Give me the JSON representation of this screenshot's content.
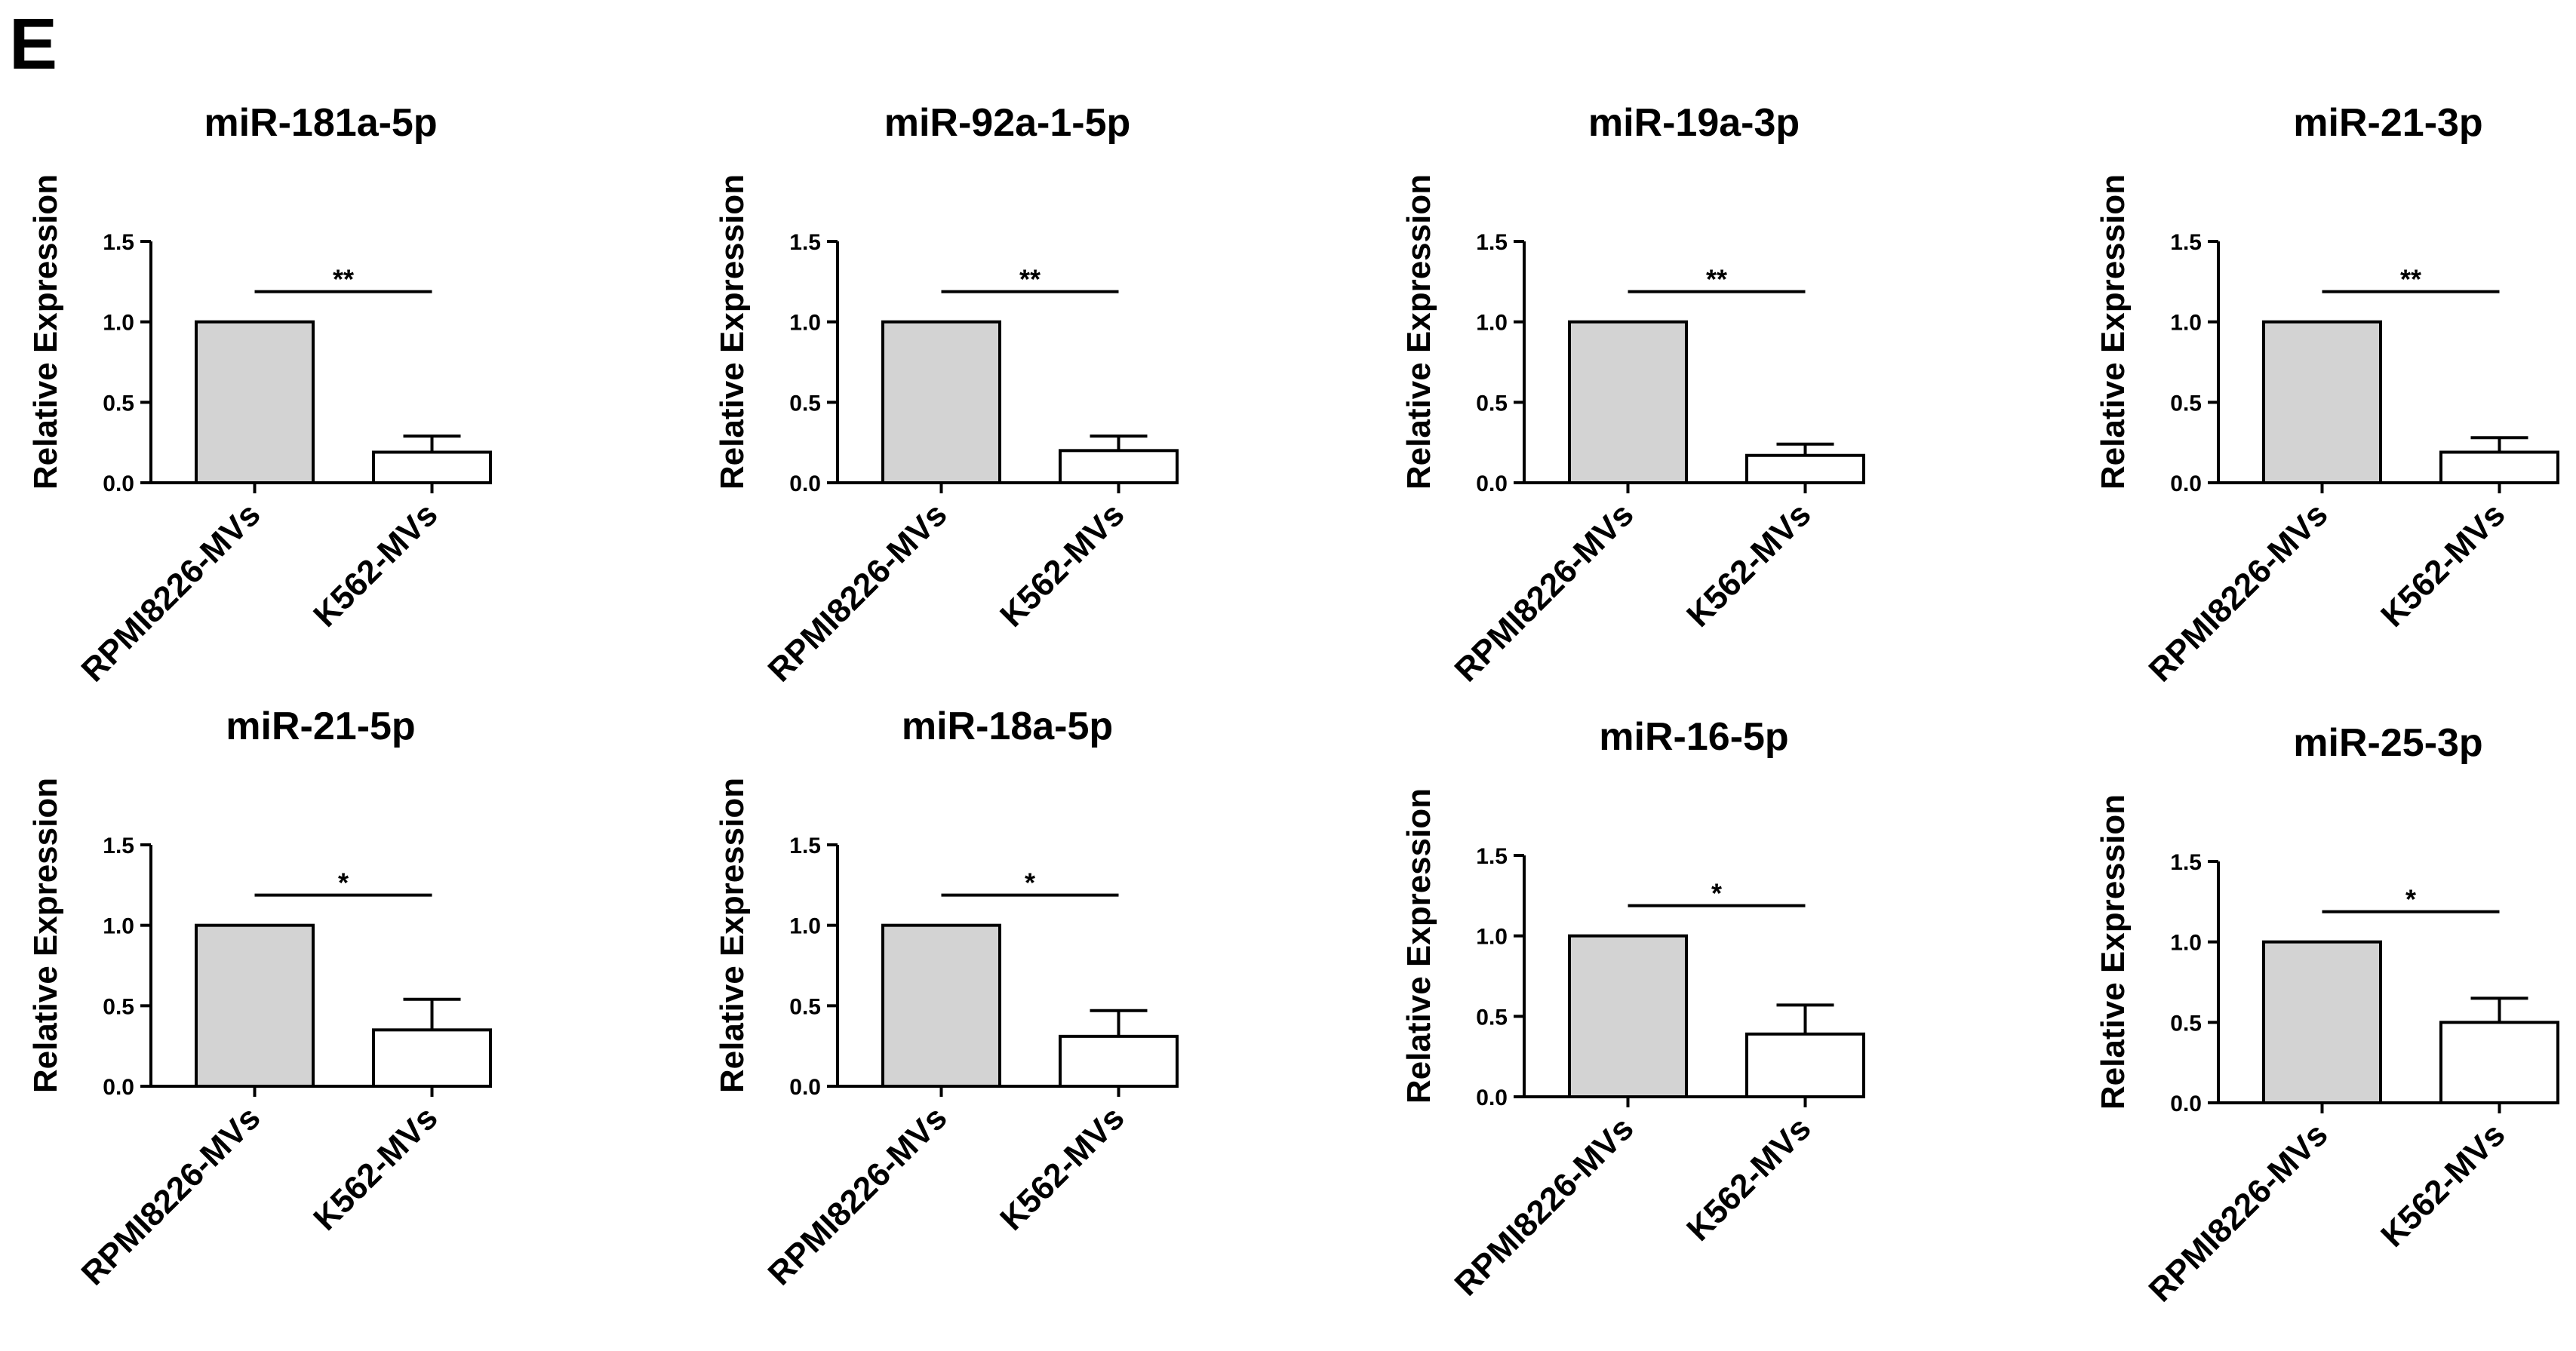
{
  "panel_label": "E",
  "colors": {
    "group1_fill": "#d3d3d3",
    "group2_fill": "#ffffff",
    "stroke": "#000000"
  },
  "chart_data": [
    {
      "type": "bar",
      "title": "miR-181a-5p",
      "ylabel": "Relative Expression",
      "categories": [
        "RPMI8226-MVs",
        "K562-MVs"
      ],
      "values": [
        1.0,
        0.19
      ],
      "errors": [
        0,
        0.1
      ],
      "ylim": [
        0,
        1.5
      ],
      "yticks": [
        "0.0",
        "0.5",
        "1.0",
        "1.5"
      ],
      "significance": "**",
      "grid": false
    },
    {
      "type": "bar",
      "title": "miR-92a-1-5p",
      "ylabel": "Relative Expression",
      "categories": [
        "RPMI8226-MVs",
        "K562-MVs"
      ],
      "values": [
        1.0,
        0.2
      ],
      "errors": [
        0,
        0.09
      ],
      "ylim": [
        0,
        1.5
      ],
      "yticks": [
        "0.0",
        "0.5",
        "1.0",
        "1.5"
      ],
      "significance": "**",
      "grid": false
    },
    {
      "type": "bar",
      "title": "miR-19a-3p",
      "ylabel": "Relative Expression",
      "categories": [
        "RPMI8226-MVs",
        "K562-MVs"
      ],
      "values": [
        1.0,
        0.17
      ],
      "errors": [
        0,
        0.07
      ],
      "ylim": [
        0,
        1.5
      ],
      "yticks": [
        "0.0",
        "0.5",
        "1.0",
        "1.5"
      ],
      "significance": "**",
      "grid": false
    },
    {
      "type": "bar",
      "title": "miR-21-3p",
      "ylabel": "Relative Expression",
      "categories": [
        "RPMI8226-MVs",
        "K562-MVs"
      ],
      "values": [
        1.0,
        0.19
      ],
      "errors": [
        0,
        0.09
      ],
      "ylim": [
        0,
        1.5
      ],
      "yticks": [
        "0.0",
        "0.5",
        "1.0",
        "1.5"
      ],
      "significance": "**",
      "grid": false
    },
    {
      "type": "bar",
      "title": "miR-21-5p",
      "ylabel": "Relative Expression",
      "categories": [
        "RPMI8226-MVs",
        "K562-MVs"
      ],
      "values": [
        1.0,
        0.35
      ],
      "errors": [
        0,
        0.19
      ],
      "ylim": [
        0,
        1.5
      ],
      "yticks": [
        "0.0",
        "0.5",
        "1.0",
        "1.5"
      ],
      "significance": "*",
      "grid": false
    },
    {
      "type": "bar",
      "title": "miR-18a-5p",
      "ylabel": "Relative Expression",
      "categories": [
        "RPMI8226-MVs",
        "K562-MVs"
      ],
      "values": [
        1.0,
        0.31
      ],
      "errors": [
        0,
        0.16
      ],
      "ylim": [
        0,
        1.5
      ],
      "yticks": [
        "0.0",
        "0.5",
        "1.0",
        "1.5"
      ],
      "significance": "*",
      "grid": false
    },
    {
      "type": "bar",
      "title": "miR-16-5p",
      "ylabel": "Relative Expression",
      "categories": [
        "RPMI8226-MVs",
        "K562-MVs"
      ],
      "values": [
        1.0,
        0.39
      ],
      "errors": [
        0,
        0.18
      ],
      "ylim": [
        0,
        1.5
      ],
      "yticks": [
        "0.0",
        "0.5",
        "1.0",
        "1.5"
      ],
      "significance": "*",
      "grid": false
    },
    {
      "type": "bar",
      "title": "miR-25-3p",
      "ylabel": "Relative Expression",
      "categories": [
        "RPMI8226-MVs",
        "K562-MVs"
      ],
      "values": [
        1.0,
        0.5
      ],
      "errors": [
        0,
        0.15
      ],
      "ylim": [
        0,
        1.5
      ],
      "yticks": [
        "0.0",
        "0.5",
        "1.0",
        "1.5"
      ],
      "significance": "*",
      "grid": false
    }
  ]
}
